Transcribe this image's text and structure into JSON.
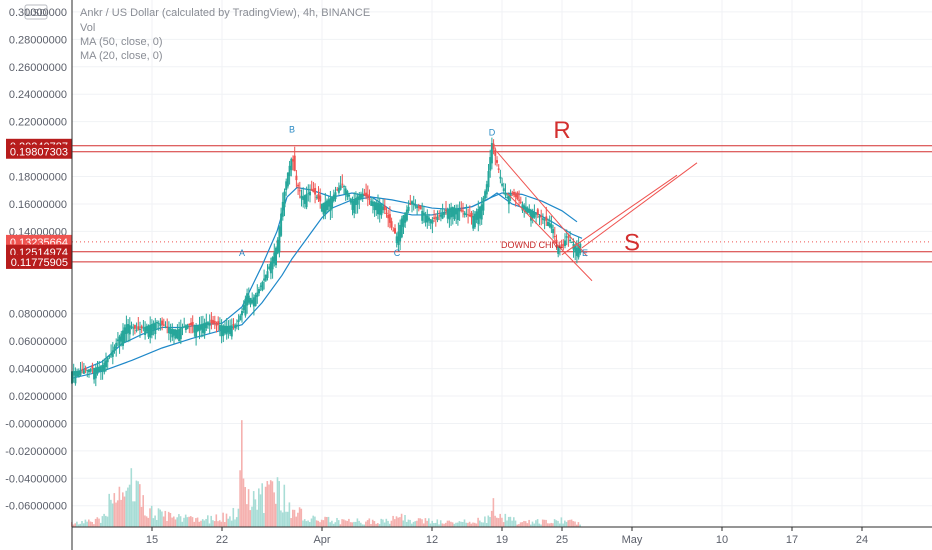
{
  "chart_data": {
    "type": "candlestick",
    "title": "Ankr / US Dollar (calculated by TradingView), 4h, BINANCE",
    "currency_badge": "USD",
    "indicators": [
      {
        "label": "Vol",
        "color": "#8a8d95"
      },
      {
        "label": "MA (50, close, 0)",
        "color": "#1e88c9"
      },
      {
        "label": "MA (20, close, 0)",
        "color": "#1e88c9"
      }
    ],
    "ylim": [
      -0.0755,
      0.3087
    ],
    "y_ticks": [
      {
        "label": "0.30000000",
        "value": 0.3
      },
      {
        "label": "0.28000000",
        "value": 0.28
      },
      {
        "label": "0.26000000",
        "value": 0.26
      },
      {
        "label": "0.24000000",
        "value": 0.24
      },
      {
        "label": "0.22000000",
        "value": 0.22
      },
      {
        "label": "0.18000000",
        "value": 0.18
      },
      {
        "label": "0.16000000",
        "value": 0.16
      },
      {
        "label": "0.14000000",
        "value": 0.14
      },
      {
        "label": "0.08000000",
        "value": 0.08
      },
      {
        "label": "0.06000000",
        "value": 0.06
      },
      {
        "label": "0.04000000",
        "value": 0.04
      },
      {
        "label": "0.02000000",
        "value": 0.02
      },
      {
        "label": "-0.00000000",
        "value": 0.0
      },
      {
        "label": "-0.02000000",
        "value": -0.02
      },
      {
        "label": "-0.04000000",
        "value": -0.04
      },
      {
        "label": "-0.06000000",
        "value": -0.06
      }
    ],
    "x_ticks": [
      {
        "label": "15",
        "x": 15
      },
      {
        "label": "22",
        "x": 22
      },
      {
        "label": "Apr",
        "x": 32
      },
      {
        "label": "12",
        "x": 43
      },
      {
        "label": "19",
        "x": 50
      },
      {
        "label": "25",
        "x": 56
      },
      {
        "label": "May",
        "x": 63
      },
      {
        "label": "10",
        "x": 72
      },
      {
        "label": "17",
        "x": 79
      },
      {
        "label": "24",
        "x": 86
      }
    ],
    "xlim": [
      7.0,
      93.0
    ],
    "price_tags": [
      {
        "label": "0.20240787",
        "value": 0.20240787,
        "color": "#b71c1c"
      },
      {
        "label": "0.19807303",
        "value": 0.19807303,
        "color": "#b71c1c"
      },
      {
        "label": "0.13235664",
        "value": 0.13235664,
        "color": "#ef5350"
      },
      {
        "label": "03:23:27",
        "value": 0.1255,
        "color": "#ef5350"
      },
      {
        "label": "0.12514974",
        "value": 0.12514974,
        "color": "#b71c1c"
      },
      {
        "label": "0.11775905",
        "value": 0.11775905,
        "color": "#b71c1c"
      }
    ],
    "horizontal_lines": [
      0.20240787,
      0.19807303,
      0.12514974,
      0.11775905
    ],
    "last_price": 0.13235664,
    "price_path": [
      [
        7.0,
        0.038
      ],
      [
        8.5,
        0.039
      ],
      [
        10.0,
        0.042
      ],
      [
        11.0,
        0.052
      ],
      [
        11.5,
        0.06
      ],
      [
        12.5,
        0.073
      ],
      [
        13.5,
        0.068
      ],
      [
        14.5,
        0.071
      ],
      [
        15.5,
        0.074
      ],
      [
        16.5,
        0.07
      ],
      [
        17.5,
        0.068
      ],
      [
        18.5,
        0.072
      ],
      [
        19.5,
        0.071
      ],
      [
        20.5,
        0.074
      ],
      [
        21.5,
        0.072
      ],
      [
        22.5,
        0.071
      ],
      [
        23.5,
        0.072
      ],
      [
        24.0,
        0.082
      ],
      [
        24.5,
        0.095
      ],
      [
        25.0,
        0.09
      ],
      [
        25.5,
        0.095
      ],
      [
        26.5,
        0.11
      ],
      [
        27.5,
        0.13
      ],
      [
        28.0,
        0.158
      ],
      [
        28.5,
        0.18
      ],
      [
        29.0,
        0.195
      ],
      [
        29.5,
        0.175
      ],
      [
        30.0,
        0.165
      ],
      [
        31.0,
        0.17
      ],
      [
        32.0,
        0.16
      ],
      [
        33.0,
        0.165
      ],
      [
        34.0,
        0.175
      ],
      [
        34.5,
        0.17
      ],
      [
        35.0,
        0.162
      ],
      [
        36.0,
        0.168
      ],
      [
        37.0,
        0.162
      ],
      [
        38.0,
        0.16
      ],
      [
        38.5,
        0.152
      ],
      [
        39.0,
        0.142
      ],
      [
        39.5,
        0.136
      ],
      [
        40.0,
        0.15
      ],
      [
        41.0,
        0.162
      ],
      [
        42.0,
        0.155
      ],
      [
        43.0,
        0.148
      ],
      [
        44.0,
        0.153
      ],
      [
        45.0,
        0.158
      ],
      [
        46.0,
        0.155
      ],
      [
        47.0,
        0.15
      ],
      [
        48.0,
        0.16
      ],
      [
        48.5,
        0.175
      ],
      [
        49.0,
        0.205
      ],
      [
        49.5,
        0.19
      ],
      [
        50.0,
        0.175
      ],
      [
        50.5,
        0.165
      ],
      [
        51.0,
        0.168
      ],
      [
        52.0,
        0.16
      ],
      [
        53.0,
        0.155
      ],
      [
        54.0,
        0.15
      ],
      [
        55.0,
        0.145
      ],
      [
        55.5,
        0.13
      ],
      [
        56.0,
        0.128
      ],
      [
        56.5,
        0.137
      ],
      [
        57.0,
        0.132
      ],
      [
        57.5,
        0.128
      ],
      [
        58.0,
        0.1324
      ]
    ],
    "volume_path": [
      [
        7.0,
        0.003
      ],
      [
        10.0,
        0.006
      ],
      [
        11.5,
        0.035
      ],
      [
        12.5,
        0.022
      ],
      [
        13.0,
        0.05
      ],
      [
        14.0,
        0.02
      ],
      [
        16.0,
        0.01
      ],
      [
        18.0,
        0.008
      ],
      [
        20.0,
        0.007
      ],
      [
        22.0,
        0.008
      ],
      [
        23.5,
        0.012
      ],
      [
        24.0,
        0.06
      ],
      [
        24.5,
        0.04
      ],
      [
        25.0,
        0.02
      ],
      [
        26.0,
        0.025
      ],
      [
        27.0,
        0.03
      ],
      [
        28.0,
        0.032
      ],
      [
        28.5,
        0.018
      ],
      [
        30.0,
        0.01
      ],
      [
        32.0,
        0.006
      ],
      [
        35.0,
        0.005
      ],
      [
        38.0,
        0.005
      ],
      [
        39.5,
        0.008
      ],
      [
        42.0,
        0.005
      ],
      [
        46.0,
        0.004
      ],
      [
        48.5,
        0.006
      ],
      [
        49.0,
        0.02
      ],
      [
        50.0,
        0.008
      ],
      [
        52.0,
        0.004
      ],
      [
        55.5,
        0.005
      ],
      [
        56.5,
        0.006
      ],
      [
        58.0,
        0.003
      ]
    ],
    "volume_tallest": 0.097,
    "ma50": [
      [
        7.0,
        0.033
      ],
      [
        10.0,
        0.038
      ],
      [
        13.0,
        0.046
      ],
      [
        16.0,
        0.055
      ],
      [
        19.0,
        0.062
      ],
      [
        22.0,
        0.068
      ],
      [
        24.0,
        0.072
      ],
      [
        26.0,
        0.088
      ],
      [
        28.0,
        0.108
      ],
      [
        29.0,
        0.12
      ],
      [
        31.0,
        0.14
      ],
      [
        32.0,
        0.15
      ],
      [
        33.0,
        0.157
      ],
      [
        35.0,
        0.163
      ],
      [
        37.0,
        0.165
      ],
      [
        39.0,
        0.163
      ],
      [
        41.0,
        0.16
      ],
      [
        43.0,
        0.157
      ],
      [
        45.0,
        0.156
      ],
      [
        47.0,
        0.158
      ],
      [
        49.0,
        0.165
      ],
      [
        50.0,
        0.168
      ],
      [
        52.0,
        0.167
      ],
      [
        54.0,
        0.162
      ],
      [
        56.0,
        0.155
      ],
      [
        57.5,
        0.147
      ]
    ],
    "ma20": [
      [
        7.0,
        0.036
      ],
      [
        10.0,
        0.045
      ],
      [
        12.0,
        0.058
      ],
      [
        14.0,
        0.065
      ],
      [
        16.0,
        0.07
      ],
      [
        18.0,
        0.07
      ],
      [
        20.0,
        0.072
      ],
      [
        22.0,
        0.073
      ],
      [
        24.0,
        0.085
      ],
      [
        26.0,
        0.115
      ],
      [
        27.5,
        0.14
      ],
      [
        28.5,
        0.165
      ],
      [
        29.5,
        0.172
      ],
      [
        31.0,
        0.17
      ],
      [
        33.0,
        0.165
      ],
      [
        35.0,
        0.168
      ],
      [
        37.0,
        0.165
      ],
      [
        39.0,
        0.155
      ],
      [
        41.0,
        0.152
      ],
      [
        43.0,
        0.152
      ],
      [
        45.0,
        0.155
      ],
      [
        47.0,
        0.158
      ],
      [
        48.5,
        0.163
      ],
      [
        49.5,
        0.168
      ],
      [
        51.0,
        0.16
      ],
      [
        53.0,
        0.155
      ],
      [
        55.0,
        0.147
      ],
      [
        57.0,
        0.138
      ],
      [
        58.0,
        0.135
      ]
    ],
    "annotations": [
      {
        "text": "A",
        "x": 24.0,
        "y": 0.122,
        "color": "#2a8ac4"
      },
      {
        "text": "B",
        "x": 29.0,
        "y": 0.212,
        "color": "#2a8ac4"
      },
      {
        "text": "C",
        "x": 39.5,
        "y": 0.122,
        "color": "#2a8ac4"
      },
      {
        "text": "D",
        "x": 49.0,
        "y": 0.21,
        "color": "#2a8ac4"
      },
      {
        "text": "DOWND CHNL",
        "x": 53.0,
        "y": 0.128,
        "color": "#c62828"
      },
      {
        "text": "E",
        "x": 58.3,
        "y": 0.122,
        "color": "#2a8ac4"
      },
      {
        "text": "R",
        "x": 56.0,
        "y": 0.208,
        "color": "#d32f2f",
        "size": "big"
      },
      {
        "text": "S",
        "x": 63.0,
        "y": 0.126,
        "color": "#d32f2f",
        "size": "big"
      }
    ],
    "trend_lines": [
      {
        "x1": 49.5,
        "y1": 0.198,
        "x2": 58.5,
        "y2": 0.122
      },
      {
        "x1": 50.5,
        "y1": 0.168,
        "x2": 59.0,
        "y2": 0.104
      },
      {
        "x1": 58.0,
        "y1": 0.128,
        "x2": 69.5,
        "y2": 0.19
      },
      {
        "x1": 56.0,
        "y1": 0.123,
        "x2": 67.5,
        "y2": 0.181
      }
    ],
    "colors": {
      "up": "#26a69a",
      "down": "#ef5350",
      "ma": "#1e88c9",
      "level_line": "#d32f2f",
      "trend_line": "#ef5350"
    }
  }
}
